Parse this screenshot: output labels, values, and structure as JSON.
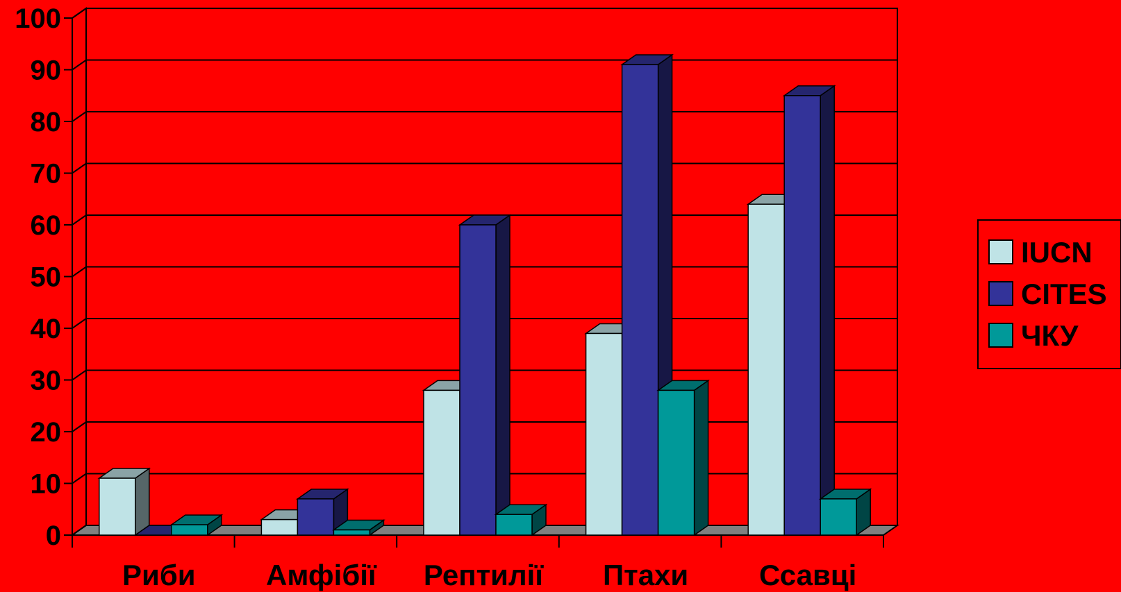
{
  "chart_data": {
    "type": "bar",
    "categories": [
      "Риби",
      "Амфібії",
      "Рептилії",
      "Птахи",
      "Ссавці"
    ],
    "series": [
      {
        "name": "IUCN",
        "values": [
          11,
          3,
          28,
          39,
          64
        ],
        "color": "#bfe3e6"
      },
      {
        "name": "CITES",
        "values": [
          0,
          7,
          60,
          91,
          85
        ],
        "color": "#333399"
      },
      {
        "name": "ЧКУ",
        "values": [
          2,
          1,
          4,
          28,
          7
        ],
        "color": "#009999"
      }
    ],
    "ylim": [
      0,
      100
    ],
    "yticks": [
      "0",
      "10",
      "20",
      "30",
      "40",
      "50",
      "60",
      "70",
      "80",
      "90",
      "100"
    ],
    "grid": true,
    "legend_position": "right",
    "background_color": "#ff0000"
  }
}
